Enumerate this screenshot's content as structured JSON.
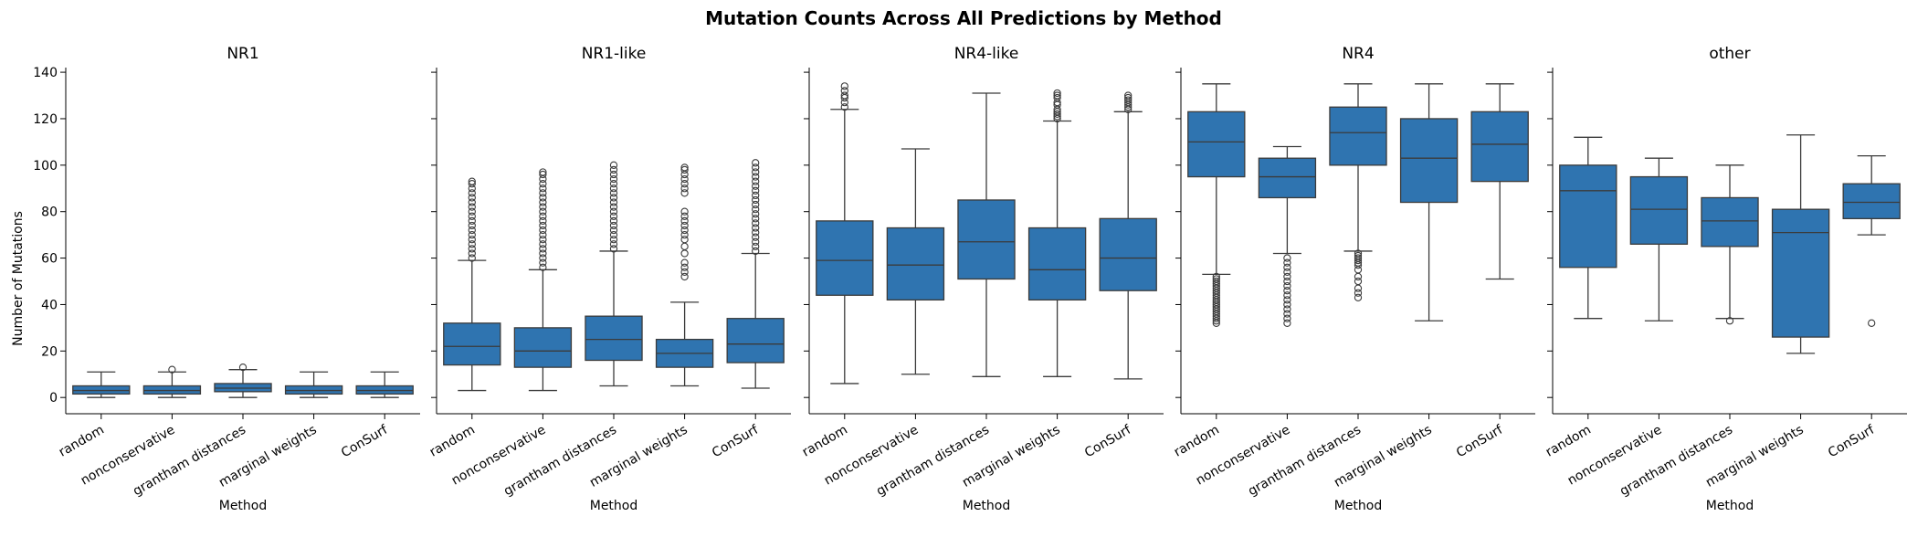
{
  "chart_data": {
    "type": "box",
    "title": "Mutation Counts Across All Predictions by Method",
    "ylabel": "Number of Mutations",
    "xlabel": "Method",
    "ylim": [
      -7,
      142
    ],
    "yticks": [
      0,
      20,
      40,
      60,
      80,
      100,
      120,
      140
    ],
    "categories": [
      "random",
      "nonconservative",
      "grantham distances",
      "marginal weights",
      "ConSurf"
    ],
    "box_color": "#2f74b0",
    "panels": [
      {
        "title": "NR1",
        "boxes": [
          {
            "whislo": 0,
            "q1": 1.5,
            "median": 3,
            "q3": 5,
            "whishi": 11,
            "fliers": []
          },
          {
            "whislo": 0,
            "q1": 1.5,
            "median": 3,
            "q3": 5,
            "whishi": 11,
            "fliers": [
              12
            ]
          },
          {
            "whislo": 0,
            "q1": 2.5,
            "median": 4,
            "q3": 6,
            "whishi": 12,
            "fliers": [
              13
            ]
          },
          {
            "whislo": 0,
            "q1": 1.5,
            "median": 3,
            "q3": 5,
            "whishi": 11,
            "fliers": []
          },
          {
            "whislo": 0,
            "q1": 1.5,
            "median": 3,
            "q3": 5,
            "whishi": 11,
            "fliers": []
          }
        ]
      },
      {
        "title": "NR1-like",
        "boxes": [
          {
            "whislo": 3,
            "q1": 14,
            "median": 22,
            "q3": 32,
            "whishi": 59,
            "fliers": [
              60,
              62,
              64,
              66,
              68,
              70,
              72,
              74,
              76,
              78,
              80,
              82,
              84,
              86,
              88,
              90,
              92,
              93
            ]
          },
          {
            "whislo": 3,
            "q1": 13,
            "median": 20,
            "q3": 30,
            "whishi": 55,
            "fliers": [
              56,
              58,
              60,
              62,
              64,
              66,
              68,
              70,
              72,
              74,
              76,
              78,
              80,
              82,
              84,
              86,
              88,
              90,
              92,
              94,
              96,
              97
            ]
          },
          {
            "whislo": 5,
            "q1": 16,
            "median": 25,
            "q3": 35,
            "whishi": 63,
            "fliers": [
              64,
              66,
              68,
              70,
              72,
              74,
              76,
              78,
              80,
              82,
              84,
              86,
              88,
              90,
              92,
              94,
              96,
              98,
              100
            ]
          },
          {
            "whislo": 5,
            "q1": 13,
            "median": 19,
            "q3": 25,
            "whishi": 41,
            "fliers": [
              52,
              54,
              56,
              58,
              62,
              65,
              68,
              70,
              72,
              74,
              76,
              78,
              80,
              88,
              90,
              92,
              94,
              96,
              98,
              99
            ]
          },
          {
            "whislo": 4,
            "q1": 15,
            "median": 23,
            "q3": 34,
            "whishi": 62,
            "fliers": [
              63,
              65,
              67,
              69,
              71,
              73,
              75,
              77,
              79,
              81,
              83,
              85,
              87,
              89,
              91,
              93,
              95,
              97,
              99,
              101
            ]
          }
        ]
      },
      {
        "title": "NR4-like",
        "boxes": [
          {
            "whislo": 6,
            "q1": 44,
            "median": 59,
            "q3": 76,
            "whishi": 124,
            "fliers": [
              125,
              127,
              129,
              130,
              132,
              134
            ]
          },
          {
            "whislo": 10,
            "q1": 42,
            "median": 57,
            "q3": 73,
            "whishi": 107,
            "fliers": []
          },
          {
            "whislo": 9,
            "q1": 51,
            "median": 67,
            "q3": 85,
            "whishi": 131,
            "fliers": []
          },
          {
            "whislo": 9,
            "q1": 42,
            "median": 55,
            "q3": 73,
            "whishi": 119,
            "fliers": [
              120,
              121,
              122,
              123,
              124,
              126,
              127,
              129,
              130,
              131
            ]
          },
          {
            "whislo": 8,
            "q1": 46,
            "median": 60,
            "q3": 77,
            "whishi": 123,
            "fliers": [
              124,
              125,
              126,
              127,
              128,
              129,
              130
            ]
          }
        ]
      },
      {
        "title": "NR4",
        "boxes": [
          {
            "whislo": 53,
            "q1": 95,
            "median": 110,
            "q3": 123,
            "whishi": 135,
            "fliers": [
              32,
              33,
              34,
              35,
              36,
              37,
              38,
              39,
              40,
              41,
              42,
              43,
              44,
              45,
              46,
              47,
              48,
              49,
              50,
              51,
              52
            ]
          },
          {
            "whislo": 62,
            "q1": 86,
            "median": 95,
            "q3": 103,
            "whishi": 108,
            "fliers": [
              32,
              34,
              36,
              38,
              40,
              42,
              44,
              46,
              48,
              50,
              52,
              54,
              56,
              58,
              60
            ]
          },
          {
            "whislo": 63,
            "q1": 100,
            "median": 114,
            "q3": 125,
            "whishi": 135,
            "fliers": [
              43,
              45,
              47,
              50,
              52,
              55,
              57,
              58,
              59,
              60,
              61,
              62
            ]
          },
          {
            "whislo": 33,
            "q1": 84,
            "median": 103,
            "q3": 120,
            "whishi": 135,
            "fliers": []
          },
          {
            "whislo": 51,
            "q1": 93,
            "median": 109,
            "q3": 123,
            "whishi": 135,
            "fliers": []
          }
        ]
      },
      {
        "title": "other",
        "boxes": [
          {
            "whislo": 34,
            "q1": 56,
            "median": 89,
            "q3": 100,
            "whishi": 112,
            "fliers": []
          },
          {
            "whislo": 33,
            "q1": 66,
            "median": 81,
            "q3": 95,
            "whishi": 103,
            "fliers": []
          },
          {
            "whislo": 34,
            "q1": 65,
            "median": 76,
            "q3": 86,
            "whishi": 100,
            "fliers": [
              33
            ]
          },
          {
            "whislo": 19,
            "q1": 26,
            "median": 71,
            "q3": 81,
            "whishi": 113,
            "fliers": []
          },
          {
            "whislo": 70,
            "q1": 77,
            "median": 84,
            "q3": 92,
            "whishi": 104,
            "fliers": [
              32
            ]
          }
        ]
      }
    ]
  }
}
